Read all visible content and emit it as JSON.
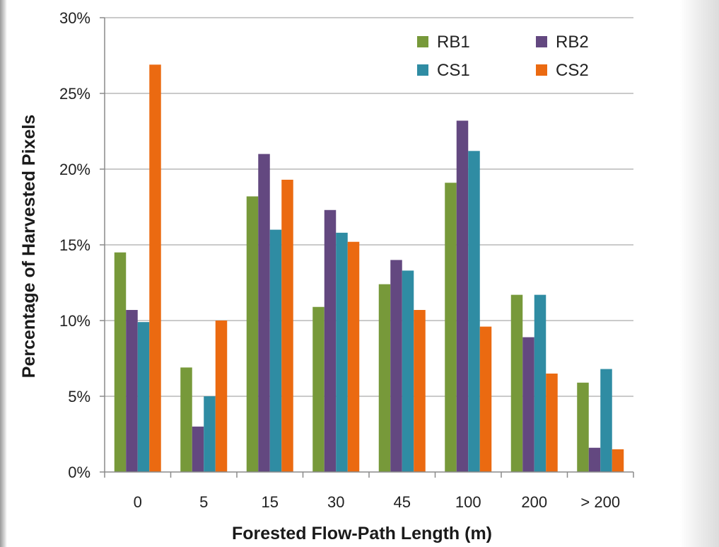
{
  "chart_data": {
    "type": "bar",
    "title": "",
    "xlabel": "Forested Flow-Path Length (m)",
    "ylabel": "Percentage of Harvested Pixels",
    "categories": [
      "0",
      "5",
      "15",
      "30",
      "45",
      "100",
      "200",
      "> 200"
    ],
    "ylim": [
      0,
      30
    ],
    "yticks": [
      {
        "value": 0,
        "label": "0%"
      },
      {
        "value": 5,
        "label": "5%"
      },
      {
        "value": 10,
        "label": "10%"
      },
      {
        "value": 15,
        "label": "15%"
      },
      {
        "value": 20,
        "label": "20%"
      },
      {
        "value": 25,
        "label": "25%"
      },
      {
        "value": 30,
        "label": "30%"
      }
    ],
    "grid": true,
    "legend_position": "top-right",
    "series": [
      {
        "name": "RB1",
        "color": "#77993A",
        "values": [
          14.5,
          6.9,
          18.2,
          10.9,
          12.4,
          19.1,
          11.7,
          5.9
        ]
      },
      {
        "name": "RB2",
        "color": "#634880",
        "values": [
          10.7,
          3.0,
          21.0,
          17.3,
          14.0,
          23.2,
          8.9,
          1.6
        ]
      },
      {
        "name": "CS1",
        "color": "#2F8CA3",
        "values": [
          9.9,
          5.0,
          16.0,
          15.8,
          13.3,
          21.2,
          11.7,
          6.8
        ]
      },
      {
        "name": "CS2",
        "color": "#EB6A11",
        "values": [
          26.9,
          10.0,
          19.3,
          15.2,
          10.7,
          9.6,
          6.5,
          1.5
        ]
      }
    ],
    "legend_order": [
      "RB1",
      "RB2",
      "CS1",
      "CS2"
    ]
  }
}
